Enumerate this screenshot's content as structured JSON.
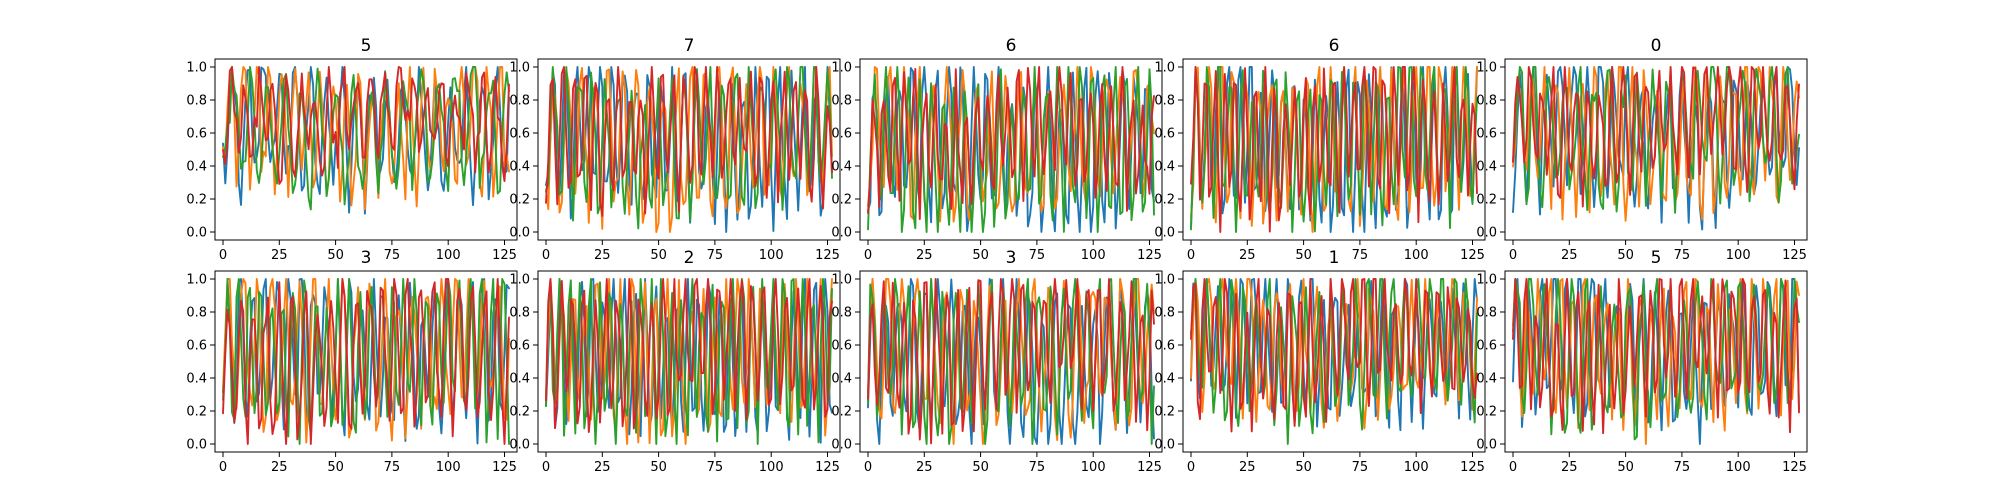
{
  "figure": {
    "colors": [
      "#1f77b4",
      "#ff7f0e",
      "#2ca02c",
      "#d62728"
    ]
  },
  "chart_data": [
    {
      "type": "line",
      "title": "5",
      "xlim": [
        0,
        127
      ],
      "ylim": [
        0.0,
        1.0
      ],
      "x_ticks": [
        "0",
        "25",
        "50",
        "75",
        "100",
        "125"
      ],
      "y_ticks": [
        "0.0",
        "0.2",
        "0.4",
        "0.6",
        "0.8",
        "1.0"
      ],
      "n_points": 128,
      "series": [
        {
          "color": "#1f77b4",
          "period": 6.9,
          "mean": 0.62,
          "amp": 0.34
        },
        {
          "color": "#ff7f0e",
          "period": 5.7,
          "mean": 0.62,
          "amp": 0.33
        },
        {
          "color": "#2ca02c",
          "period": 7.6,
          "mean": 0.63,
          "amp": 0.33
        },
        {
          "color": "#d62728",
          "period": 6.2,
          "mean": 0.7,
          "amp": 0.22
        }
      ]
    },
    {
      "type": "line",
      "title": "7",
      "xlim": [
        0,
        127
      ],
      "ylim": [
        0.0,
        1.0
      ],
      "x_ticks": [
        "0",
        "25",
        "50",
        "75",
        "100",
        "125"
      ],
      "y_ticks": [
        "0.0",
        "0.2",
        "0.4",
        "0.6",
        "0.8",
        "1.0"
      ],
      "n_points": 128,
      "series": [
        {
          "color": "#1f77b4",
          "period": 5.3,
          "mean": 0.55,
          "amp": 0.42
        },
        {
          "color": "#ff7f0e",
          "period": 6.1,
          "mean": 0.55,
          "amp": 0.42
        },
        {
          "color": "#2ca02c",
          "period": 5.8,
          "mean": 0.57,
          "amp": 0.38
        },
        {
          "color": "#d62728",
          "period": 4.9,
          "mean": 0.6,
          "amp": 0.36
        }
      ]
    },
    {
      "type": "line",
      "title": "6",
      "xlim": [
        0,
        127
      ],
      "ylim": [
        0.0,
        1.0
      ],
      "x_ticks": [
        "0",
        "25",
        "50",
        "75",
        "100",
        "125"
      ],
      "y_ticks": [
        "0.0",
        "0.2",
        "0.4",
        "0.6",
        "0.8",
        "1.0"
      ],
      "n_points": 128,
      "series": [
        {
          "color": "#1f77b4",
          "period": 5.5,
          "mean": 0.52,
          "amp": 0.44
        },
        {
          "color": "#ff7f0e",
          "period": 6.4,
          "mean": 0.55,
          "amp": 0.42
        },
        {
          "color": "#2ca02c",
          "period": 5.1,
          "mean": 0.5,
          "amp": 0.45
        },
        {
          "color": "#d62728",
          "period": 4.6,
          "mean": 0.58,
          "amp": 0.32
        }
      ]
    },
    {
      "type": "line",
      "title": "6",
      "xlim": [
        0,
        127
      ],
      "ylim": [
        0.0,
        1.0
      ],
      "x_ticks": [
        "0",
        "25",
        "50",
        "75",
        "100",
        "125"
      ],
      "y_ticks": [
        "0.0",
        "0.2",
        "0.4",
        "0.6",
        "0.8",
        "1.0"
      ],
      "n_points": 128,
      "series": [
        {
          "color": "#1f77b4",
          "period": 4.8,
          "mean": 0.52,
          "amp": 0.45
        },
        {
          "color": "#ff7f0e",
          "period": 5.4,
          "mean": 0.56,
          "amp": 0.42
        },
        {
          "color": "#2ca02c",
          "period": 5.0,
          "mean": 0.55,
          "amp": 0.43
        },
        {
          "color": "#d62728",
          "period": 4.4,
          "mean": 0.58,
          "amp": 0.4
        }
      ]
    },
    {
      "type": "line",
      "title": "0",
      "xlim": [
        0,
        127
      ],
      "ylim": [
        0.0,
        1.0
      ],
      "x_ticks": [
        "0",
        "25",
        "50",
        "75",
        "100",
        "125"
      ],
      "y_ticks": [
        "0.0",
        "0.2",
        "0.4",
        "0.6",
        "0.8",
        "1.0"
      ],
      "n_points": 128,
      "series": [
        {
          "color": "#1f77b4",
          "period": 6.0,
          "mean": 0.6,
          "amp": 0.38
        },
        {
          "color": "#ff7f0e",
          "period": 5.6,
          "mean": 0.58,
          "amp": 0.4
        },
        {
          "color": "#2ca02c",
          "period": 6.6,
          "mean": 0.62,
          "amp": 0.36
        },
        {
          "color": "#d62728",
          "period": 5.2,
          "mean": 0.66,
          "amp": 0.3
        }
      ]
    },
    {
      "type": "line",
      "title": "3",
      "xlim": [
        0,
        127
      ],
      "ylim": [
        0.0,
        1.0
      ],
      "x_ticks": [
        "0",
        "25",
        "50",
        "75",
        "100",
        "125"
      ],
      "y_ticks": [
        "0.0",
        "0.2",
        "0.4",
        "0.6",
        "0.8",
        "1.0"
      ],
      "n_points": 128,
      "series": [
        {
          "color": "#1f77b4",
          "period": 5.4,
          "mean": 0.55,
          "amp": 0.42
        },
        {
          "color": "#ff7f0e",
          "period": 6.3,
          "mean": 0.56,
          "amp": 0.42
        },
        {
          "color": "#2ca02c",
          "period": 4.9,
          "mean": 0.55,
          "amp": 0.43
        },
        {
          "color": "#d62728",
          "period": 5.7,
          "mean": 0.55,
          "amp": 0.42
        }
      ]
    },
    {
      "type": "line",
      "title": "2",
      "xlim": [
        0,
        127
      ],
      "ylim": [
        0.0,
        1.0
      ],
      "x_ticks": [
        "0",
        "25",
        "50",
        "75",
        "100",
        "125"
      ],
      "y_ticks": [
        "0.0",
        "0.2",
        "0.4",
        "0.6",
        "0.8",
        "1.0"
      ],
      "n_points": 128,
      "series": [
        {
          "color": "#1f77b4",
          "period": 4.7,
          "mean": 0.52,
          "amp": 0.46
        },
        {
          "color": "#ff7f0e",
          "period": 5.2,
          "mean": 0.55,
          "amp": 0.43
        },
        {
          "color": "#2ca02c",
          "period": 4.5,
          "mean": 0.53,
          "amp": 0.45
        },
        {
          "color": "#d62728",
          "period": 5.0,
          "mean": 0.6,
          "amp": 0.38
        }
      ]
    },
    {
      "type": "line",
      "title": "3",
      "xlim": [
        0,
        127
      ],
      "ylim": [
        0.0,
        1.0
      ],
      "x_ticks": [
        "0",
        "25",
        "50",
        "75",
        "100",
        "125"
      ],
      "y_ticks": [
        "0.0",
        "0.2",
        "0.4",
        "0.6",
        "0.8",
        "1.0"
      ],
      "n_points": 128,
      "series": [
        {
          "color": "#1f77b4",
          "period": 5.8,
          "mean": 0.5,
          "amp": 0.46
        },
        {
          "color": "#ff7f0e",
          "period": 6.5,
          "mean": 0.55,
          "amp": 0.42
        },
        {
          "color": "#2ca02c",
          "period": 5.3,
          "mean": 0.53,
          "amp": 0.44
        },
        {
          "color": "#d62728",
          "period": 4.8,
          "mean": 0.6,
          "amp": 0.38
        }
      ]
    },
    {
      "type": "line",
      "title": "1",
      "xlim": [
        0,
        127
      ],
      "ylim": [
        0.0,
        1.0
      ],
      "x_ticks": [
        "0",
        "25",
        "50",
        "75",
        "100",
        "125"
      ],
      "y_ticks": [
        "0.0",
        "0.2",
        "0.4",
        "0.6",
        "0.8",
        "1.0"
      ],
      "n_points": 128,
      "series": [
        {
          "color": "#1f77b4",
          "period": 5.2,
          "mean": 0.6,
          "amp": 0.38
        },
        {
          "color": "#ff7f0e",
          "period": 6.0,
          "mean": 0.6,
          "amp": 0.38
        },
        {
          "color": "#2ca02c",
          "period": 5.5,
          "mean": 0.58,
          "amp": 0.4
        },
        {
          "color": "#d62728",
          "period": 4.7,
          "mean": 0.62,
          "amp": 0.36
        }
      ]
    },
    {
      "type": "line",
      "title": "5",
      "xlim": [
        0,
        127
      ],
      "ylim": [
        0.0,
        1.0
      ],
      "x_ticks": [
        "0",
        "25",
        "50",
        "75",
        "100",
        "125"
      ],
      "y_ticks": [
        "0.0",
        "0.2",
        "0.4",
        "0.6",
        "0.8",
        "1.0"
      ],
      "n_points": 128,
      "series": [
        {
          "color": "#1f77b4",
          "period": 5.6,
          "mean": 0.58,
          "amp": 0.4
        },
        {
          "color": "#ff7f0e",
          "period": 5.0,
          "mean": 0.58,
          "amp": 0.4
        },
        {
          "color": "#2ca02c",
          "period": 6.2,
          "mean": 0.57,
          "amp": 0.41
        },
        {
          "color": "#d62728",
          "period": 4.6,
          "mean": 0.6,
          "amp": 0.38
        }
      ]
    }
  ]
}
